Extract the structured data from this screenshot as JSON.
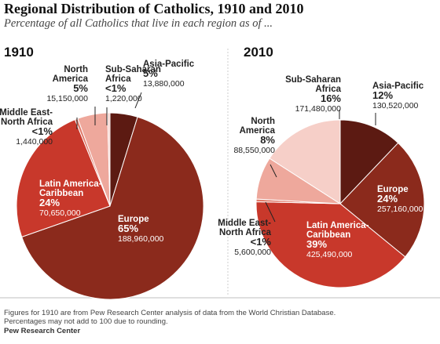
{
  "title": "Regional Distribution of Catholics, 1910 and 2010",
  "subtitle": "Percentage of all Catholics that live in each region as of ...",
  "notes": [
    "Figures for 1910 are from Pew Research Center analysis of data from the World Christian Database.",
    "Percentages may not add to 100 due to rounding."
  ],
  "source": "Pew Research Center",
  "colors": {
    "Asia-Pacific": "#5c1a12",
    "Europe": "#8b2a1c",
    "Latin America-Caribbean": "#c8382b",
    "Middle East-North Africa": "#e07b6a",
    "North America": "#eea89c",
    "Sub-Saharan Africa": "#f6cfc8"
  },
  "chart_data": [
    {
      "type": "pie",
      "title": "1910",
      "slices": [
        {
          "name": "Asia-Pacific",
          "label": [
            "Asia-Pacific"
          ],
          "percent": "5%",
          "count": "13,880,000",
          "value": 13880000
        },
        {
          "name": "Europe",
          "label": [
            "Europe"
          ],
          "percent": "65%",
          "count": "188,960,000",
          "value": 188960000
        },
        {
          "name": "Latin America-Caribbean",
          "label": [
            "Latin America-",
            "Caribbean"
          ],
          "percent": "24%",
          "count": "70,650,000",
          "value": 70650000
        },
        {
          "name": "Middle East-North Africa",
          "label": [
            "Middle East-",
            "North Africa"
          ],
          "percent": "<1%",
          "count": "1,440,000",
          "value": 1440000
        },
        {
          "name": "North America",
          "label": [
            "North",
            "America"
          ],
          "percent": "5%",
          "count": "15,150,000",
          "value": 15150000
        },
        {
          "name": "Sub-Saharan Africa",
          "label": [
            "Sub-Saharan",
            "Africa"
          ],
          "percent": "<1%",
          "count": "1,220,000",
          "value": 1220000
        }
      ]
    },
    {
      "type": "pie",
      "title": "2010",
      "slices": [
        {
          "name": "Asia-Pacific",
          "label": [
            "Asia-Pacific"
          ],
          "percent": "12%",
          "count": "130,520,000",
          "value": 130520000
        },
        {
          "name": "Europe",
          "label": [
            "Europe"
          ],
          "percent": "24%",
          "count": "257,160,000",
          "value": 257160000
        },
        {
          "name": "Latin America-Caribbean",
          "label": [
            "Latin America-",
            "Caribbean"
          ],
          "percent": "39%",
          "count": "425,490,000",
          "value": 425490000
        },
        {
          "name": "Middle East-North Africa",
          "label": [
            "Middle East-",
            "North Africa"
          ],
          "percent": "<1%",
          "count": "5,600,000",
          "value": 5600000
        },
        {
          "name": "North America",
          "label": [
            "North",
            "America"
          ],
          "percent": "8%",
          "count": "88,550,000",
          "value": 88550000
        },
        {
          "name": "Sub-Saharan Africa",
          "label": [
            "Sub-Saharan",
            "Africa"
          ],
          "percent": "16%",
          "count": "171,480,000",
          "value": 171480000
        }
      ]
    }
  ]
}
